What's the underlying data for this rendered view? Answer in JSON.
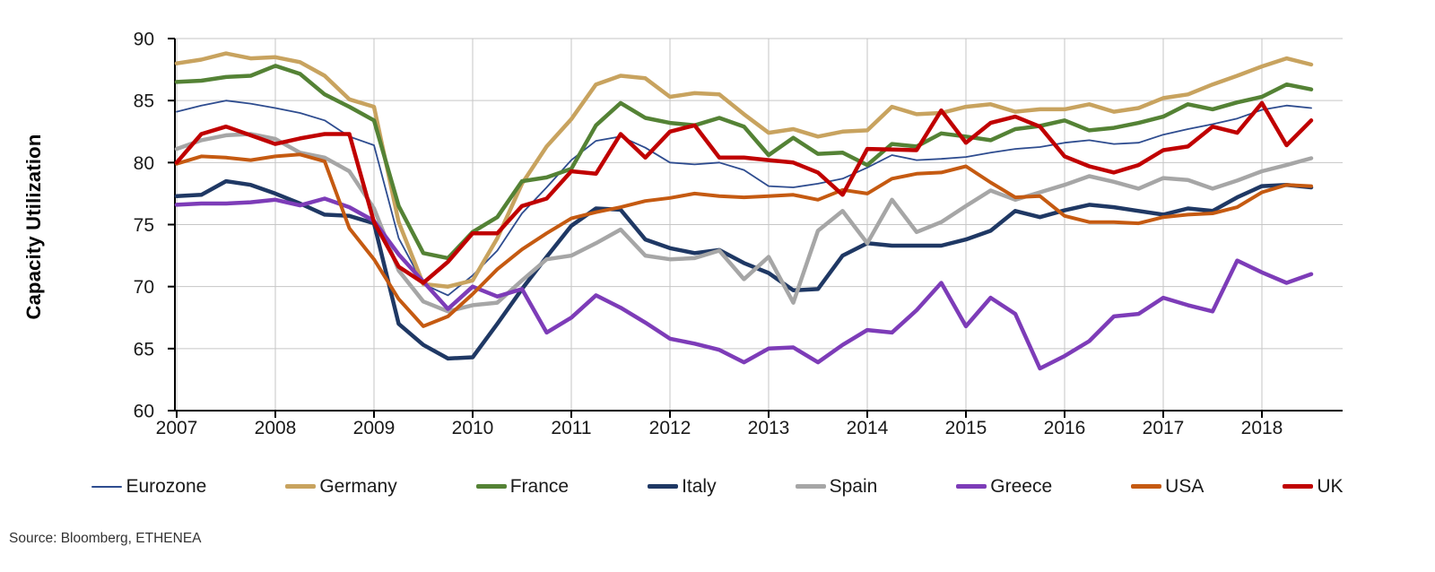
{
  "source": {
    "text": "Source: Bloomberg, ETHENEA"
  },
  "chart_data": {
    "type": "line",
    "title": "",
    "xlabel": "",
    "ylabel": "Capacity Utilization",
    "ylim": [
      60,
      90
    ],
    "y_ticks": [
      60,
      65,
      70,
      75,
      80,
      85,
      90
    ],
    "x_tick_labels": [
      "2007",
      "2008",
      "2009",
      "2010",
      "2011",
      "2012",
      "2013",
      "2014",
      "2015",
      "2016",
      "2017",
      "2018"
    ],
    "x_start_year": 2007.0,
    "x_step_years": 0.25,
    "grid": true,
    "legend_position": "bottom",
    "axis_color": "#000000",
    "grid_color": "#c6c6c6",
    "tick_label_color": "#1a1a1a",
    "series": [
      {
        "name": "Eurozone",
        "color": "#2E4C8F",
        "width": 1.8,
        "values": [
          84.1,
          84.6,
          85.0,
          84.75,
          84.4,
          84.0,
          83.4,
          82.1,
          81.4,
          73.9,
          70.2,
          69.3,
          70.9,
          72.9,
          75.9,
          78.0,
          80.2,
          81.75,
          82.1,
          81.2,
          80.0,
          79.85,
          80.0,
          79.4,
          78.1,
          78.0,
          78.3,
          78.7,
          79.6,
          80.6,
          80.2,
          80.3,
          80.45,
          80.8,
          81.1,
          81.25,
          81.6,
          81.8,
          81.5,
          81.6,
          82.25,
          82.7,
          83.1,
          83.55,
          84.25,
          84.6,
          84.4
        ]
      },
      {
        "name": "Germany",
        "color": "#C8A35F",
        "width": 4.5,
        "values": [
          88.0,
          88.3,
          88.8,
          88.4,
          88.5,
          88.1,
          87.0,
          85.1,
          84.5,
          75.2,
          70.2,
          70.0,
          70.5,
          73.9,
          78.3,
          81.3,
          83.5,
          86.3,
          87.0,
          86.8,
          85.3,
          85.6,
          85.5,
          83.9,
          82.4,
          82.7,
          82.1,
          82.5,
          82.6,
          84.5,
          83.9,
          84.0,
          84.5,
          84.7,
          84.1,
          84.3,
          84.3,
          84.7,
          84.1,
          84.4,
          85.2,
          85.5,
          86.3,
          87.0,
          87.75,
          88.4,
          87.9
        ]
      },
      {
        "name": "France",
        "color": "#548235",
        "width": 4.5,
        "values": [
          86.5,
          86.6,
          86.9,
          87.0,
          87.8,
          87.15,
          85.5,
          84.5,
          83.4,
          76.5,
          72.7,
          72.3,
          74.4,
          75.6,
          78.5,
          78.8,
          79.5,
          83.0,
          84.8,
          83.6,
          83.2,
          83.0,
          83.6,
          82.9,
          80.6,
          82.0,
          80.7,
          80.8,
          79.8,
          81.5,
          81.3,
          82.35,
          82.1,
          81.8,
          82.7,
          82.95,
          83.4,
          82.6,
          82.8,
          83.2,
          83.7,
          84.7,
          84.3,
          84.85,
          85.3,
          86.3,
          85.9
        ]
      },
      {
        "name": "Italy",
        "color": "#1F3864",
        "width": 4.5,
        "values": [
          77.3,
          77.4,
          78.5,
          78.2,
          77.5,
          76.7,
          75.8,
          75.7,
          75.1,
          67.0,
          65.3,
          64.2,
          64.3,
          67.0,
          69.8,
          72.4,
          74.9,
          76.3,
          76.2,
          73.8,
          73.1,
          72.7,
          72.95,
          71.9,
          71.1,
          69.7,
          69.8,
          72.5,
          73.5,
          73.3,
          73.3,
          73.3,
          73.8,
          74.5,
          76.1,
          75.6,
          76.15,
          76.6,
          76.4,
          76.1,
          75.8,
          76.3,
          76.1,
          77.2,
          78.1,
          78.2,
          78.0
        ]
      },
      {
        "name": "Spain",
        "color": "#A6A6A6",
        "width": 4.5,
        "values": [
          81.1,
          81.8,
          82.2,
          82.3,
          81.9,
          80.8,
          80.4,
          79.3,
          76.3,
          71.3,
          68.8,
          68.0,
          68.5,
          68.7,
          70.5,
          72.2,
          72.5,
          73.5,
          74.6,
          72.5,
          72.2,
          72.3,
          72.9,
          70.6,
          72.4,
          68.7,
          74.5,
          76.1,
          73.5,
          77.0,
          74.4,
          75.2,
          76.5,
          77.75,
          77.0,
          77.6,
          78.2,
          78.9,
          78.45,
          77.9,
          78.75,
          78.6,
          77.9,
          78.55,
          79.3,
          79.8,
          80.35
        ]
      },
      {
        "name": "Greece",
        "color": "#7D3CB8",
        "width": 4.5,
        "values": [
          76.6,
          76.7,
          76.7,
          76.8,
          77.0,
          76.55,
          77.1,
          76.4,
          75.3,
          72.6,
          70.4,
          68.2,
          70.0,
          69.2,
          69.8,
          66.3,
          67.5,
          69.3,
          68.3,
          67.1,
          65.8,
          65.4,
          64.9,
          63.9,
          65.0,
          65.1,
          63.9,
          65.3,
          66.5,
          66.3,
          68.1,
          70.3,
          66.8,
          69.1,
          67.8,
          63.4,
          64.4,
          65.6,
          67.6,
          67.8,
          69.1,
          68.5,
          68.0,
          72.1,
          71.15,
          70.3,
          71.0
        ]
      },
      {
        "name": "USA",
        "color": "#C55A11",
        "width": 4.0,
        "values": [
          79.9,
          80.5,
          80.4,
          80.2,
          80.5,
          80.65,
          80.1,
          74.7,
          72.2,
          69.0,
          66.8,
          67.6,
          69.4,
          71.4,
          73.0,
          74.3,
          75.5,
          76.0,
          76.4,
          76.9,
          77.15,
          77.5,
          77.3,
          77.2,
          77.3,
          77.4,
          77.0,
          77.8,
          77.5,
          78.7,
          79.1,
          79.2,
          79.7,
          78.4,
          77.2,
          77.3,
          75.7,
          75.2,
          75.2,
          75.1,
          75.6,
          75.8,
          75.9,
          76.4,
          77.6,
          78.2,
          78.1
        ]
      },
      {
        "name": "UK",
        "color": "#C00000",
        "width": 4.5,
        "values": [
          80.0,
          82.3,
          82.9,
          82.2,
          81.5,
          81.95,
          82.3,
          82.3,
          75.2,
          71.6,
          70.3,
          72.0,
          74.3,
          74.3,
          76.5,
          77.1,
          79.3,
          79.1,
          82.3,
          80.4,
          82.5,
          83.0,
          80.4,
          80.4,
          80.2,
          80.0,
          79.2,
          77.4,
          81.1,
          81.05,
          81.0,
          84.2,
          81.6,
          83.2,
          83.7,
          82.9,
          80.5,
          79.7,
          79.2,
          79.8,
          81.0,
          81.3,
          82.9,
          82.4,
          84.8,
          81.4,
          83.4
        ]
      }
    ]
  }
}
